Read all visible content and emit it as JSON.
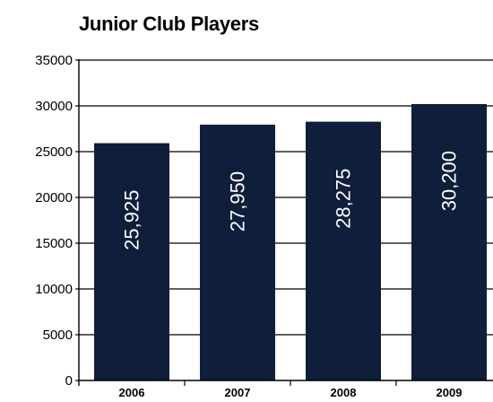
{
  "chart_data": {
    "type": "bar",
    "title": "Junior Club Players",
    "categories": [
      "2006",
      "2007",
      "2008",
      "2009"
    ],
    "values": [
      25925,
      27950,
      28275,
      30200
    ],
    "data_labels": [
      "25,925",
      "27,950",
      "28,275",
      "30,200"
    ],
    "yticks": [
      "0",
      "5000",
      "10000",
      "15000",
      "20000",
      "25000",
      "30000",
      "35000"
    ],
    "ylim": [
      0,
      35000
    ],
    "xlabel": "",
    "ylabel": "",
    "grid": true,
    "bar_color": "#0f1e3a"
  }
}
